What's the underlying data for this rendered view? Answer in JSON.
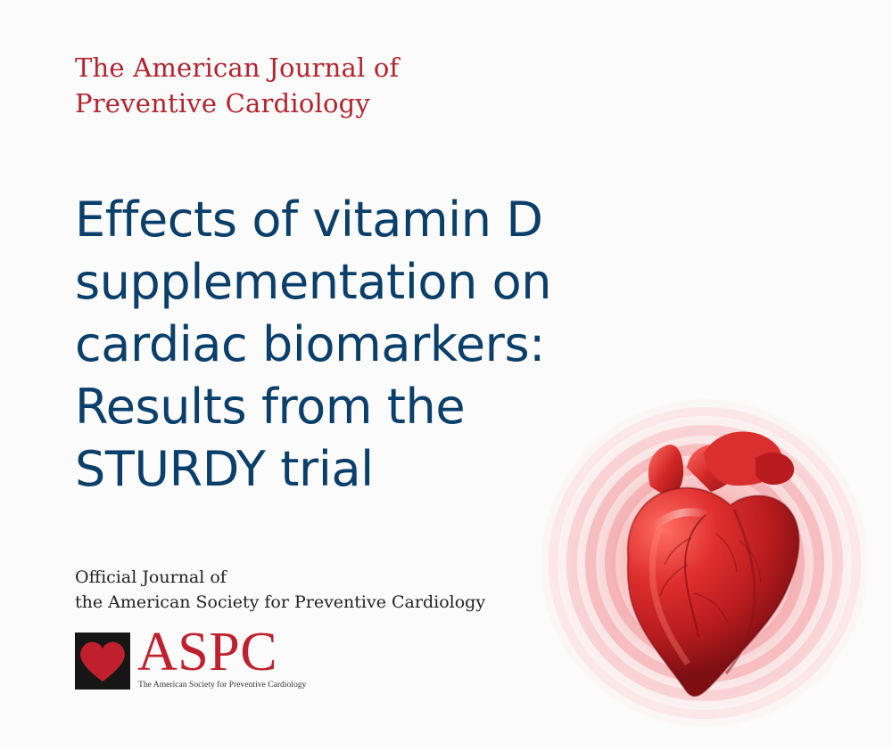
{
  "journal": {
    "title_lines": [
      "The American Journal of",
      "Preventive Cardiology"
    ]
  },
  "article": {
    "title_lines": [
      "Effects of vitamin D",
      "supplementation on",
      "cardiac biomarkers:",
      "Results from the",
      "STURDY trial"
    ]
  },
  "footer": {
    "official_lines": [
      "Official Journal of",
      "the American Society for Preventive Cardiology"
    ],
    "logo": {
      "wordmark": "ASPC",
      "subtitle": "The American Society for Preventive Cardiology",
      "icon": "heart-icon"
    }
  },
  "illustration": {
    "icon": "anatomical-heart-icon"
  },
  "colors": {
    "journal_red": "#b3242f",
    "title_blue": "#0b3f6b",
    "heart_red": "#c81d22",
    "glow_pink": "#f7c9cb"
  }
}
